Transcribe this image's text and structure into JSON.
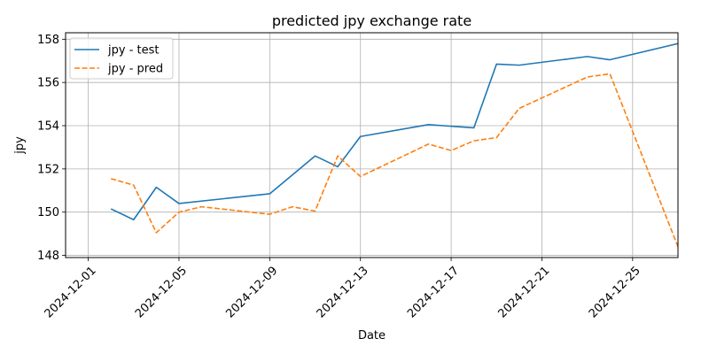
{
  "chart_data": {
    "type": "line",
    "title": "predicted jpy exchange rate",
    "xlabel": "Date",
    "ylabel": "jpy",
    "xlim": [
      "2024-11-30",
      "2024-12-27"
    ],
    "ylim": [
      147.9,
      158.3
    ],
    "x_ticks": [
      "2024-12-01",
      "2024-12-05",
      "2024-12-09",
      "2024-12-13",
      "2024-12-17",
      "2024-12-21",
      "2024-12-25"
    ],
    "y_ticks": [
      148,
      150,
      152,
      154,
      156,
      158
    ],
    "grid": true,
    "legend_position": "top-left",
    "series": [
      {
        "name": "jpy - test",
        "color": "#1f77b4",
        "style": "solid",
        "points": [
          {
            "x": "2024-12-02",
            "y": 150.15
          },
          {
            "x": "2024-12-03",
            "y": 149.65
          },
          {
            "x": "2024-12-04",
            "y": 151.15
          },
          {
            "x": "2024-12-05",
            "y": 150.4
          },
          {
            "x": "2024-12-09",
            "y": 150.85
          },
          {
            "x": "2024-12-11",
            "y": 152.6
          },
          {
            "x": "2024-12-12",
            "y": 152.1
          },
          {
            "x": "2024-12-13",
            "y": 153.5
          },
          {
            "x": "2024-12-16",
            "y": 154.05
          },
          {
            "x": "2024-12-18",
            "y": 153.9
          },
          {
            "x": "2024-12-19",
            "y": 156.85
          },
          {
            "x": "2024-12-20",
            "y": 156.8
          },
          {
            "x": "2024-12-23",
            "y": 157.2
          },
          {
            "x": "2024-12-24",
            "y": 157.05
          },
          {
            "x": "2024-12-27",
            "y": 157.8
          }
        ]
      },
      {
        "name": "jpy - pred",
        "color": "#ff7f0e",
        "style": "dashed",
        "points": [
          {
            "x": "2024-12-02",
            "y": 151.55
          },
          {
            "x": "2024-12-03",
            "y": 151.25
          },
          {
            "x": "2024-12-04",
            "y": 149.05
          },
          {
            "x": "2024-12-05",
            "y": 150.0
          },
          {
            "x": "2024-12-06",
            "y": 150.25
          },
          {
            "x": "2024-12-09",
            "y": 149.9
          },
          {
            "x": "2024-12-10",
            "y": 150.25
          },
          {
            "x": "2024-12-11",
            "y": 150.05
          },
          {
            "x": "2024-12-12",
            "y": 152.6
          },
          {
            "x": "2024-12-13",
            "y": 151.65
          },
          {
            "x": "2024-12-16",
            "y": 153.15
          },
          {
            "x": "2024-12-17",
            "y": 152.85
          },
          {
            "x": "2024-12-18",
            "y": 153.3
          },
          {
            "x": "2024-12-19",
            "y": 153.45
          },
          {
            "x": "2024-12-20",
            "y": 154.8
          },
          {
            "x": "2024-12-23",
            "y": 156.25
          },
          {
            "x": "2024-12-24",
            "y": 156.4
          },
          {
            "x": "2024-12-27",
            "y": 148.4
          }
        ]
      }
    ]
  }
}
